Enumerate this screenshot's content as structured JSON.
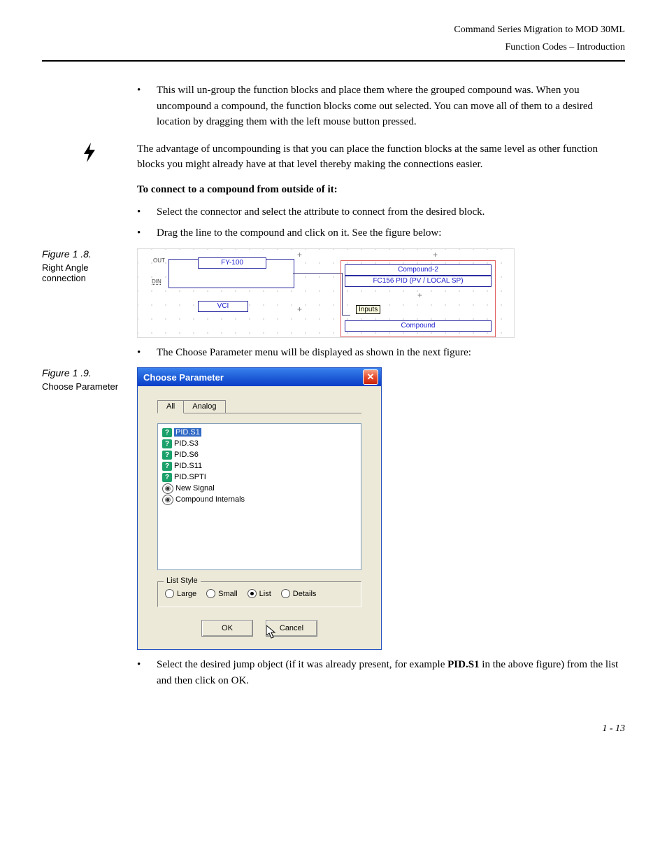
{
  "header": {
    "line1": "Command Series Migration to MOD 30ML",
    "line2": "Function Codes – Introduction"
  },
  "p1": "This will un-group the function blocks and place them where the grouped compound was. When you uncompound a compound, the function blocks come out selected. You can move all of them to a desired location by dragging them with the left mouse button pressed.",
  "note1": "The advantage of uncompounding is that you can place the function blocks at the same level as other function blocks you might already have at that level thereby making the connections easier.",
  "heading1": "To connect to a compound from outside of it:",
  "b2": "Select the connector and select the attribute to connect from the desired block.",
  "b3": "Drag the line to the compound and click on it. See the figure below:",
  "fig18": {
    "num": "Figure 1 .8.",
    "desc": "Right Angle connection",
    "out_label": "OUT",
    "din_label": "DIN",
    "block1": "FY-100",
    "block2": "VCI",
    "comp_title": "Compound-2",
    "comp_sub": "FC156 PID (PV / LOCAL SP)",
    "tooltip": "Inputs",
    "comp_btn": "Compound",
    "block1_color": "#1a1ad0",
    "block_border": "#2a2aa0",
    "group_border": "#e06060",
    "tooltip_bg": "#ffffe1"
  },
  "b4": "The Choose Parameter menu will be displayed as shown in the next figure:",
  "fig19": {
    "num": "Figure 1 .9.",
    "desc": "Choose Parameter",
    "dialog_title": "Choose Parameter",
    "tabs": [
      "All",
      "Analog"
    ],
    "active_tab": 0,
    "items": [
      {
        "icon": "q",
        "label": "PID.S1",
        "selected": true
      },
      {
        "icon": "q",
        "label": "PID.S3"
      },
      {
        "icon": "q",
        "label": "PID.S6"
      },
      {
        "icon": "q",
        "label": "PID.S11"
      },
      {
        "icon": "q",
        "label": "PID.SPTI"
      },
      {
        "icon": "c",
        "label": "New Signal"
      },
      {
        "icon": "c",
        "label": "Compound Internals"
      }
    ],
    "list_style_label": "List Style",
    "list_styles": [
      "Large",
      "Small",
      "List",
      "Details"
    ],
    "list_style_selected": 2,
    "ok_label": "OK",
    "cancel_label": "Cancel",
    "titlebar_gradient": [
      "#3a81ee",
      "#0a3cc8"
    ],
    "close_bg": [
      "#f7a385",
      "#c8240c"
    ],
    "body_bg": "#ece9d8",
    "select_bg": "#316ac5"
  },
  "b5_pre": "Select the desired jump object (if it was already present, for example ",
  "b5_bold": "PID.S1",
  "b5_post": " in the above figure) from the list and then click on OK.",
  "pagenum": "1 - 13"
}
